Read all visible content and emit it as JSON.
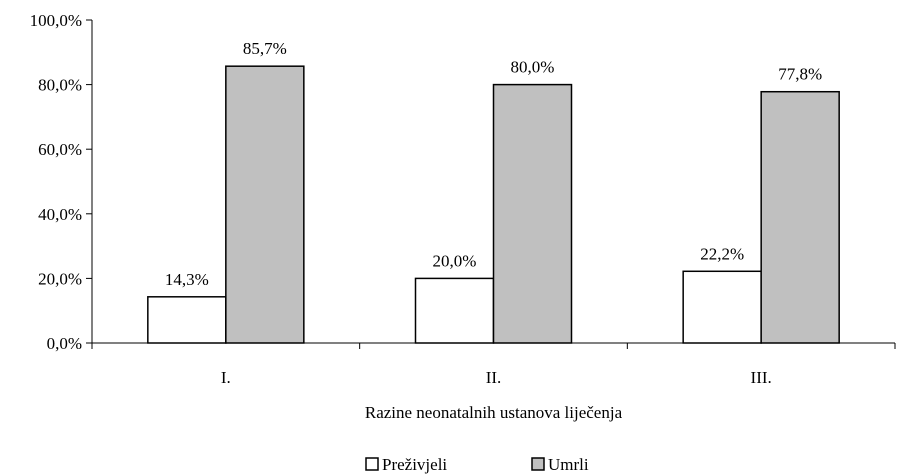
{
  "chart_data": {
    "type": "bar",
    "title": "",
    "xlabel": "Razine neonatalnih ustanova liječenja",
    "ylabel": "",
    "categories": [
      "I.",
      "II.",
      "III."
    ],
    "ylim": [
      0,
      100
    ],
    "ytick_values": [
      0,
      20,
      40,
      60,
      80,
      100
    ],
    "ytick_labels": [
      "0,0%",
      "20,0%",
      "40,0%",
      "60,0%",
      "80,0%",
      "100,0%"
    ],
    "series": [
      {
        "name": "Preživjeli",
        "values": [
          14.3,
          20.0,
          22.2
        ],
        "labels": [
          "14,3%",
          "20,0%",
          "22,2%"
        ],
        "color": "#ffffff"
      },
      {
        "name": "Umrli",
        "values": [
          85.7,
          80.0,
          77.8
        ],
        "labels": [
          "85,7%",
          "80,0%",
          "77,8%"
        ],
        "color": "#c0c0c0"
      }
    ],
    "grid": false,
    "legend_position": "bottom-center"
  }
}
